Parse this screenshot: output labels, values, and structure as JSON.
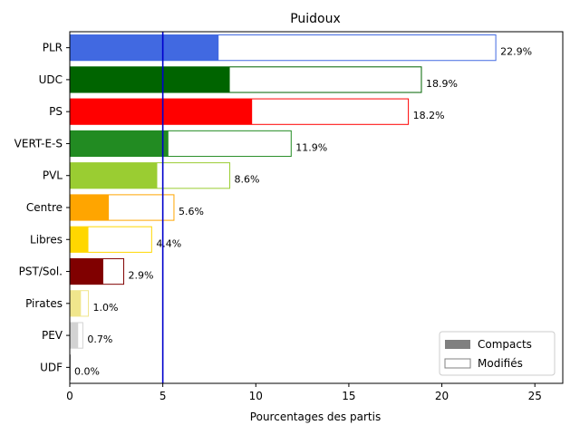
{
  "chart_data": {
    "type": "bar",
    "orientation": "horizontal",
    "title": "Puidoux",
    "xlabel": "Pourcentages des partis",
    "ylabel": "",
    "xlim": [
      0,
      26.5
    ],
    "xticks": [
      0,
      5,
      10,
      15,
      20,
      25
    ],
    "threshold": 5,
    "threshold_color": "#0000cd",
    "categories": [
      "PLR",
      "UDC",
      "PS",
      "VERT-E-S",
      "PVL",
      "Centre",
      "Libres",
      "PST/Sol.",
      "Pirates",
      "PEV",
      "UDF"
    ],
    "series": [
      {
        "name": "Compacts",
        "values": [
          8.0,
          8.6,
          9.8,
          5.3,
          4.7,
          2.1,
          1.0,
          1.8,
          0.6,
          0.45,
          0.05
        ]
      },
      {
        "name": "Modifiés",
        "values": [
          22.9,
          18.9,
          18.2,
          11.9,
          8.6,
          5.6,
          4.4,
          2.9,
          1.0,
          0.7,
          0.0
        ]
      }
    ],
    "totals": [
      22.9,
      18.9,
      18.2,
      11.9,
      8.6,
      5.6,
      4.4,
      2.9,
      1.0,
      0.7,
      0.0
    ],
    "value_labels": [
      "22.9%",
      "18.9%",
      "18.2%",
      "11.9%",
      "8.6%",
      "5.6%",
      "4.4%",
      "2.9%",
      "1.0%",
      "0.7%",
      "0.0%"
    ],
    "colors": [
      "#4169e1",
      "#006400",
      "#ff0000",
      "#228b22",
      "#9acd32",
      "#ffa500",
      "#ffd700",
      "#800000",
      "#f0e68c",
      "#d3d3d3",
      "#808080"
    ],
    "legend": {
      "placement": "lower-right",
      "entries": [
        {
          "label": "Compacts",
          "fill": "#808080"
        },
        {
          "label": "Modifiés",
          "fill": "#ffffff"
        }
      ]
    }
  }
}
